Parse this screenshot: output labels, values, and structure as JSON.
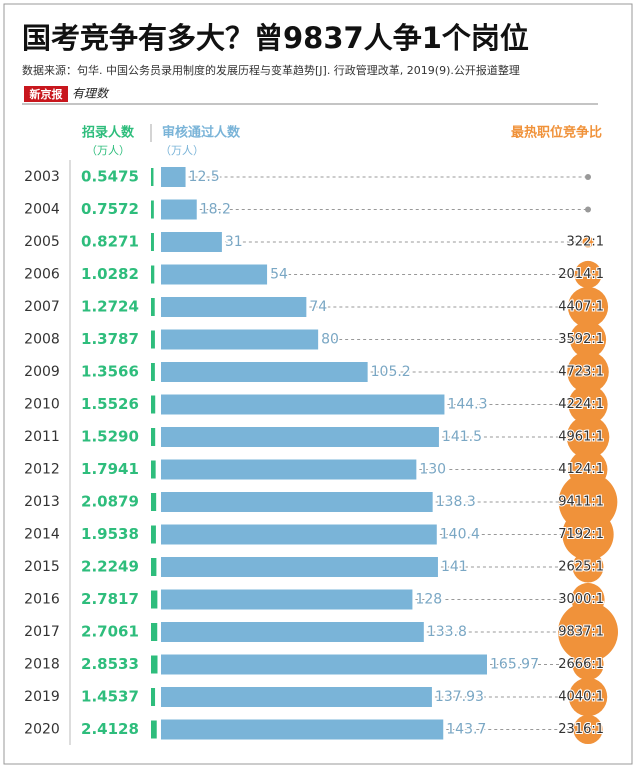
{
  "chart_data": {
    "type": "infographic-bar",
    "title": "国考竞争有多大？曾9837人争1个岗位",
    "source": "数据来源：句华. 中国公务员录用制度的发展历程与变革趋势[J]. 行政管理改革, 2019(9).公开报道整理",
    "logo": "新京报",
    "logo_sub": "有理数",
    "categories": [
      "2003",
      "2004",
      "2005",
      "2006",
      "2007",
      "2008",
      "2009",
      "2010",
      "2011",
      "2012",
      "2013",
      "2014",
      "2015",
      "2016",
      "2017",
      "2018",
      "2019",
      "2020"
    ],
    "series": [
      {
        "name": "招录人数",
        "unit": "（万人）",
        "color": "#2ebd7c",
        "values": [
          0.5475,
          0.7572,
          0.8271,
          1.0282,
          1.2724,
          1.3787,
          1.3566,
          1.5526,
          1.529,
          1.7941,
          2.0879,
          1.9538,
          2.2249,
          2.7817,
          2.7061,
          2.8533,
          1.4537,
          2.4128
        ],
        "value_labels": [
          "0.5475",
          "0.7572",
          "0.8271",
          "1.0282",
          "1.2724",
          "1.3787",
          "1.3566",
          "1.5526",
          "1.5290",
          "1.7941",
          "2.0879",
          "1.9538",
          "2.2249",
          "2.7817",
          "2.7061",
          "2.8533",
          "1.4537",
          "2.4128"
        ]
      },
      {
        "name": "审核通过人数",
        "unit": "（万人）",
        "color": "#7ab4d8",
        "values": [
          12.5,
          18.2,
          31,
          54,
          74,
          80,
          105.2,
          144.3,
          141.5,
          130,
          138.3,
          140.4,
          141,
          128,
          133.8,
          165.97,
          137.93,
          143.7
        ]
      },
      {
        "name": "最热职位竞争比",
        "color": "#f0923a",
        "values": [
          null,
          null,
          322,
          2014,
          4407,
          3592,
          4723,
          4224,
          4961,
          4124,
          9411,
          7192,
          2625,
          3000,
          9837,
          2666,
          4040,
          2316
        ],
        "value_labels": [
          null,
          null,
          "322:1",
          "2014:1",
          "4407:1",
          "3592:1",
          "4723:1",
          "4224:1",
          "4961:1",
          "4124:1",
          "9411:1",
          "7192:1",
          "2625:1",
          "3000:1",
          "9837:1",
          "2666:1",
          "4040:1",
          "2316:1"
        ]
      }
    ]
  }
}
